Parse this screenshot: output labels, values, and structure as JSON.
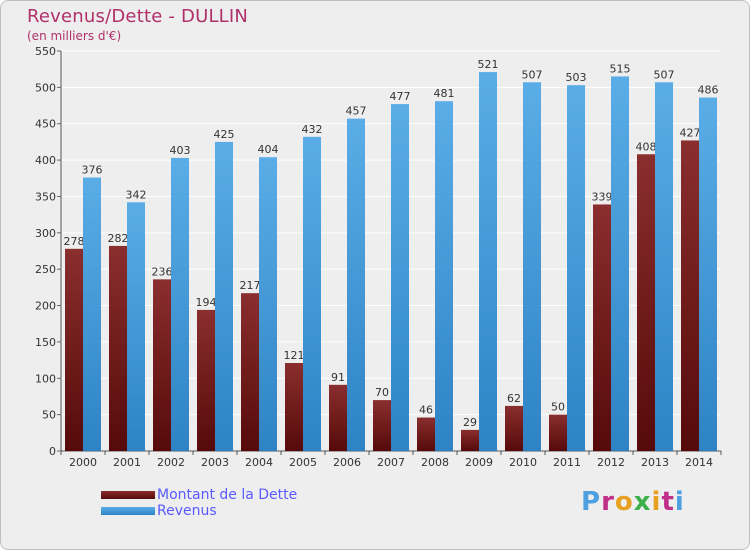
{
  "title": "Revenus/Dette - DULLIN",
  "subtitle": "(en milliers d'€)",
  "brand": "Proxiti",
  "colors": {
    "title": "#b0306a",
    "dette": "#7a1c1c",
    "revenus": "#3d9ad9",
    "legend_text": "#5a5aff",
    "background": "#eeeeee"
  },
  "legend": [
    {
      "label": "Montant de la Dette",
      "color": "#7a1c1c"
    },
    {
      "label": "Revenus",
      "color": "#3d9ad9"
    }
  ],
  "chart_data": {
    "type": "bar",
    "title": "Revenus/Dette - DULLIN",
    "subtitle": "(en milliers d'€)",
    "xlabel": "",
    "ylabel": "",
    "ylim": [
      0,
      550
    ],
    "yticks": [
      0,
      50,
      100,
      150,
      200,
      250,
      300,
      350,
      400,
      450,
      500,
      550
    ],
    "grid": true,
    "legend_position": "bottom-left",
    "categories": [
      "2000",
      "2001",
      "2002",
      "2003",
      "2004",
      "2005",
      "2006",
      "2007",
      "2008",
      "2009",
      "2010",
      "2011",
      "2012",
      "2013",
      "2014"
    ],
    "series": [
      {
        "name": "Montant de la Dette",
        "values": [
          278,
          282,
          236,
          194,
          217,
          121,
          91,
          70,
          46,
          29,
          62,
          50,
          339,
          408,
          427
        ]
      },
      {
        "name": "Revenus",
        "values": [
          376,
          342,
          403,
          425,
          404,
          432,
          457,
          477,
          481,
          521,
          507,
          503,
          515,
          507,
          486
        ]
      }
    ]
  }
}
